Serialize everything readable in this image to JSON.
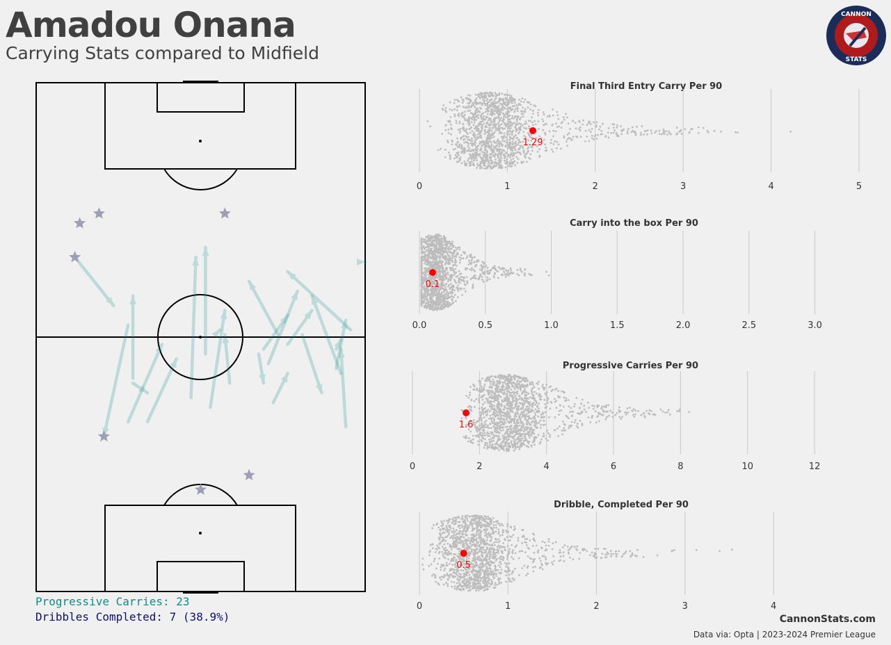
{
  "header": {
    "title": "Amadou Onana",
    "subtitle": "Carrying Stats compared to Midfield"
  },
  "logo": {
    "top_text": "CANNON",
    "bottom_text": "STATS",
    "colors": {
      "ring": "#1a2d5a",
      "inner": "#b11a1a",
      "accent": "#e03030"
    }
  },
  "legend": {
    "carries": "Progressive Carries: 23",
    "dribbles": "Dribbles Completed: 7 (38.9%)",
    "carry_color": "#108a8a",
    "dribble_color": "#0e0e6e"
  },
  "footer": {
    "site": "CannonStats.com",
    "source": "Data via: Opta | 2023-2024 Premier League"
  },
  "chart_data": [
    {
      "type": "pitch-map",
      "pitch": {
        "length": 105,
        "width": 68,
        "orientation": "vertical",
        "attack": "up"
      },
      "carries": [
        [
          19,
          55,
          14,
          32
        ],
        [
          8,
          69,
          16,
          59
        ],
        [
          19,
          35,
          26,
          51
        ],
        [
          20,
          43,
          23,
          41
        ],
        [
          20,
          44,
          20,
          61
        ],
        [
          23,
          35,
          29,
          48
        ],
        [
          32,
          40,
          33,
          69
        ],
        [
          35,
          49,
          35,
          71
        ],
        [
          36,
          38,
          39,
          58
        ],
        [
          37,
          53,
          38,
          54
        ],
        [
          40,
          43,
          39,
          53
        ],
        [
          46,
          49,
          47,
          43
        ],
        [
          47,
          50,
          52,
          57
        ],
        [
          48,
          47,
          54,
          62
        ],
        [
          49,
          39,
          52,
          45
        ],
        [
          50,
          53,
          44,
          64
        ],
        [
          52,
          51,
          57,
          58
        ],
        [
          55,
          53,
          59,
          41
        ],
        [
          62,
          46,
          64,
          56
        ],
        [
          62,
          50,
          63,
          52
        ],
        [
          64,
          34,
          63,
          50
        ],
        [
          63,
          45,
          57,
          61
        ],
        [
          65,
          54,
          52,
          66
        ],
        [
          68,
          68,
          68,
          68
        ]
      ],
      "dribbles": [
        [
          13,
          78
        ],
        [
          9,
          76
        ],
        [
          8,
          69
        ],
        [
          14,
          32
        ],
        [
          34,
          21
        ],
        [
          44,
          24
        ],
        [
          39,
          78
        ]
      ]
    },
    {
      "type": "beeswarm",
      "title": "Final Third Entry Carry Per 90",
      "xlim": [
        0,
        5
      ],
      "xticks": [
        0,
        1,
        2,
        3,
        4,
        5
      ],
      "highlight": {
        "value": 1.29,
        "label": "1.29"
      }
    },
    {
      "type": "beeswarm",
      "title": "Carry into the box Per 90",
      "xlim": [
        0,
        3.15
      ],
      "xticks": [
        0,
        0.5,
        1.0,
        1.5,
        2.0,
        2.5,
        3.0
      ],
      "xtick_labels": [
        "0.0",
        "0.5",
        "1.0",
        "1.5",
        "2.0",
        "2.5",
        "3.0"
      ],
      "highlight": {
        "value": 0.1,
        "label": "0.1"
      }
    },
    {
      "type": "beeswarm",
      "title": "Progressive Carries Per 90",
      "xlim": [
        0,
        12.6
      ],
      "xticks": [
        0,
        2,
        4,
        6,
        8,
        10,
        12
      ],
      "highlight": {
        "value": 1.6,
        "label": "1.6"
      }
    },
    {
      "type": "beeswarm",
      "title": "Dribble, Completed Per 90",
      "xlim": [
        0,
        4.4
      ],
      "xticks": [
        0,
        1,
        2,
        3,
        4
      ],
      "highlight": {
        "value": 0.5,
        "label": "0.5"
      }
    }
  ]
}
